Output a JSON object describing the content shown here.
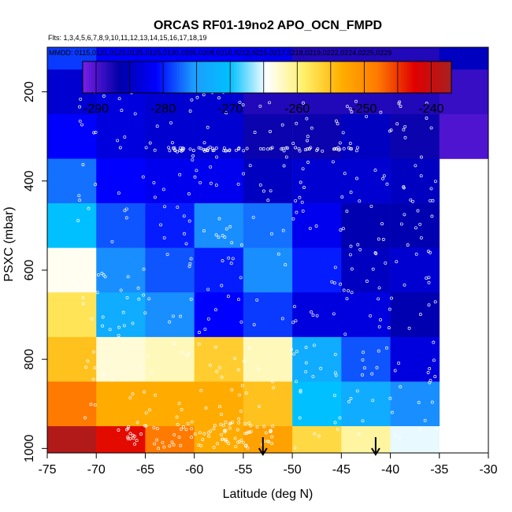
{
  "chart_data": {
    "type": "heatmap",
    "title": "ORCAS RF01-19no2 APO_OCN_FMPD",
    "subtitle_flights": "Flts: 1,3,4,5,6,7,8,9,10,11,12,13,14,15,16,17,18,19",
    "subtitle_dates": "MMDD: 0115,0121,0123,0125,0125,0130,0205,0208,0210,0212,0215,0217,0218,0219,0222,0224,0225,0229",
    "xlabel": "Latitude (deg N)",
    "ylabel": "PSXC (mbar)",
    "xlim": [
      -75,
      -30
    ],
    "ylim": [
      1010,
      100
    ],
    "x_ticks": [
      -75,
      -70,
      -65,
      -60,
      -55,
      -50,
      -45,
      -40,
      -35,
      -30
    ],
    "y_ticks": [
      200,
      400,
      600,
      800,
      1000
    ],
    "colorbar": {
      "min": -292,
      "max": -237,
      "ticks": [
        -290,
        -280,
        -270,
        -260,
        -250,
        -240
      ],
      "stops": [
        "#7a1fe6",
        "#0000a8",
        "#0000ff",
        "#1c9cff",
        "#00c0ff",
        "#ffffff",
        "#fff06a",
        "#ffb000",
        "#ff7a00",
        "#e00000",
        "#a82020"
      ]
    },
    "x_edges": [
      -75,
      -70,
      -65,
      -60,
      -55,
      -50,
      -45,
      -40,
      -35,
      -30
    ],
    "y_edges": [
      100,
      150,
      250,
      350,
      450,
      550,
      650,
      750,
      850,
      950,
      1050
    ],
    "cells": [
      [
        -279,
        -281,
        -281,
        -281,
        -282,
        -288,
        -288,
        -288,
        -285
      ],
      [
        -284,
        -283,
        -284,
        -284,
        -288,
        -288,
        -288,
        -288,
        -289
      ],
      [
        -281,
        -283,
        -284,
        -284,
        -287,
        -287,
        -285,
        -287,
        -290
      ],
      [
        -277,
        -281,
        -282,
        -282,
        -285,
        -284,
        -284,
        -285,
        null
      ],
      [
        -270,
        -278,
        -280,
        -276,
        -277,
        -282,
        -286,
        -286,
        null
      ],
      [
        -264,
        -276,
        -278,
        -280,
        -276,
        -280,
        -285,
        -284,
        null
      ],
      [
        -258,
        -273,
        -276,
        -281,
        -279,
        -283,
        -283,
        -286,
        null
      ],
      [
        -255,
        -263,
        -262,
        -256,
        -262,
        -273,
        -278,
        -283,
        null
      ],
      [
        -248,
        -253,
        -253,
        -253,
        -255,
        -270,
        -273,
        -276,
        null
      ],
      [
        -238,
        -243,
        -248,
        -253,
        -252,
        -257,
        -261,
        -265,
        null
      ]
    ],
    "obs_arrows": [
      -53,
      -41.5
    ]
  }
}
